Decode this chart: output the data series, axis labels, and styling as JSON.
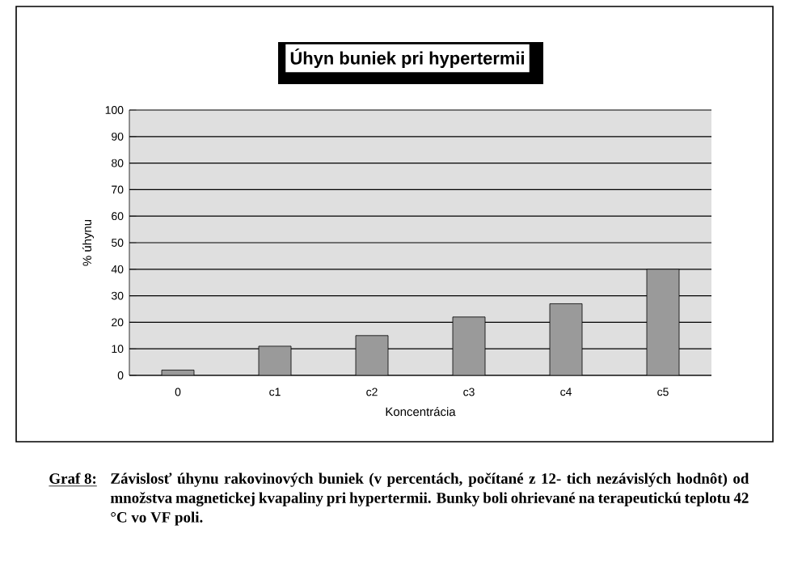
{
  "chart_data": {
    "type": "bar",
    "title": "Úhyn buniek pri hypertermii",
    "xlabel": "Koncentrácia",
    "ylabel": "% úhynu",
    "categories": [
      "0",
      "c1",
      "c2",
      "c3",
      "c4",
      "c5"
    ],
    "values": [
      2,
      11,
      15,
      22,
      27,
      40
    ],
    "color": "#9a9a9a",
    "ylim": [
      0,
      100
    ],
    "yticks": [
      0,
      10,
      20,
      30,
      40,
      50,
      60,
      70,
      80,
      90,
      100
    ],
    "grid": "y",
    "annotations": [
      "Graf 8:",
      "Závislosť úhynu rakovinových buniek (v percentách, počítané z 12- tich nezávislých hodnôt) od množstva magnetickej kvapaliny pri hypertermii. Bunky boli ohrievané na terapeutickú teplotu 42 °C vo VF poli."
    ]
  }
}
